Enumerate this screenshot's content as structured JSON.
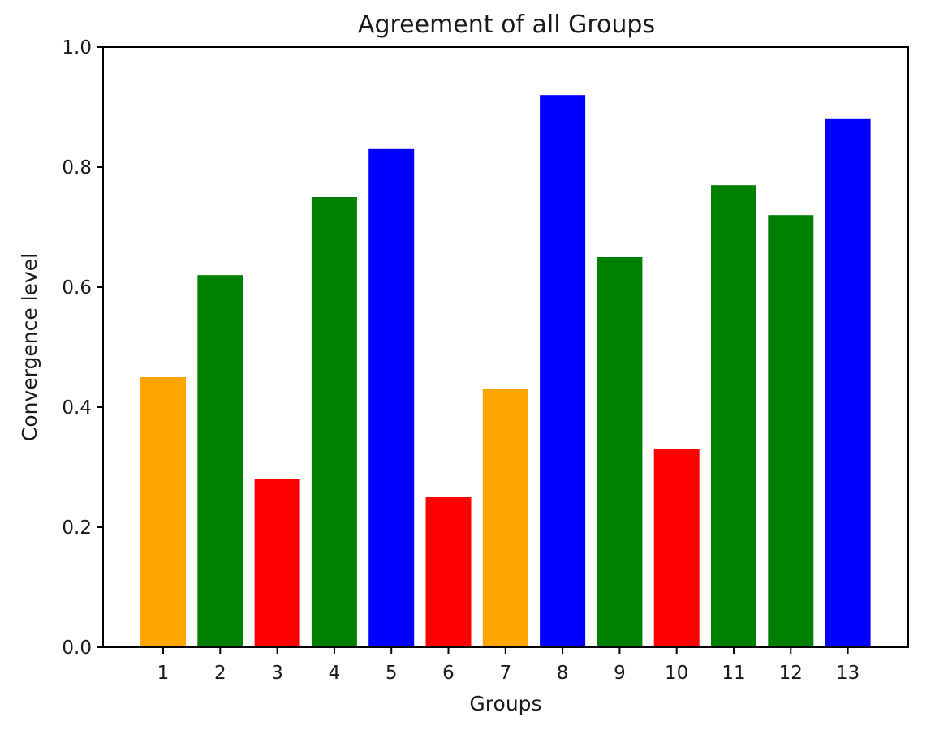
{
  "chart_data": {
    "type": "bar",
    "title": "Agreement of all Groups",
    "xlabel": "Groups",
    "ylabel": "Convergence level",
    "categories": [
      "1",
      "2",
      "3",
      "4",
      "5",
      "6",
      "7",
      "8",
      "9",
      "10",
      "11",
      "12",
      "13"
    ],
    "values": [
      0.45,
      0.62,
      0.28,
      0.75,
      0.83,
      0.25,
      0.43,
      0.92,
      0.65,
      0.33,
      0.77,
      0.72,
      0.88
    ],
    "colors": [
      "#FFA500",
      "#008000",
      "#FF0000",
      "#008000",
      "#0000FF",
      "#FF0000",
      "#FFA500",
      "#0000FF",
      "#008000",
      "#FF0000",
      "#008000",
      "#008000",
      "#0000FF"
    ],
    "ylim": [
      0,
      1.0
    ],
    "yticks": [
      "0.0",
      "0.2",
      "0.4",
      "0.6",
      "0.8",
      "1.0"
    ],
    "grid": false,
    "legend": "none"
  }
}
